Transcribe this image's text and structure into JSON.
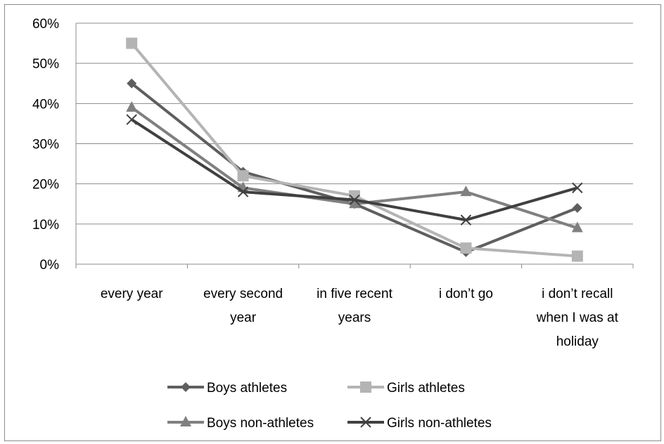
{
  "chart_data": {
    "type": "line",
    "title": "",
    "xlabel": "",
    "ylabel": "",
    "categories": [
      [
        "every year"
      ],
      [
        "every second",
        "year"
      ],
      [
        "in five recent",
        "years"
      ],
      [
        "i don’t go"
      ],
      [
        "i don’t recall",
        "when I was at",
        "holiday"
      ]
    ],
    "ylim": [
      0,
      0.6
    ],
    "yticks": [
      "0%",
      "10%",
      "20%",
      "30%",
      "40%",
      "50%",
      "60%"
    ],
    "grid": "horizontal",
    "legend_position": "bottom",
    "series": [
      {
        "name": "Boys athletes",
        "color": "#5f5f5f",
        "marker": "diamond",
        "values": [
          0.45,
          0.23,
          0.15,
          0.03,
          0.14
        ]
      },
      {
        "name": "Girls athletes",
        "color": "#b4b4b4",
        "marker": "square",
        "values": [
          0.55,
          0.22,
          0.17,
          0.04,
          0.02
        ]
      },
      {
        "name": "Boys non-athletes",
        "color": "#808080",
        "marker": "triangle",
        "values": [
          0.39,
          0.19,
          0.15,
          0.18,
          0.09
        ]
      },
      {
        "name": "Girls non-athletes",
        "color": "#404040",
        "marker": "x",
        "values": [
          0.36,
          0.18,
          0.16,
          0.11,
          0.19
        ]
      }
    ]
  }
}
